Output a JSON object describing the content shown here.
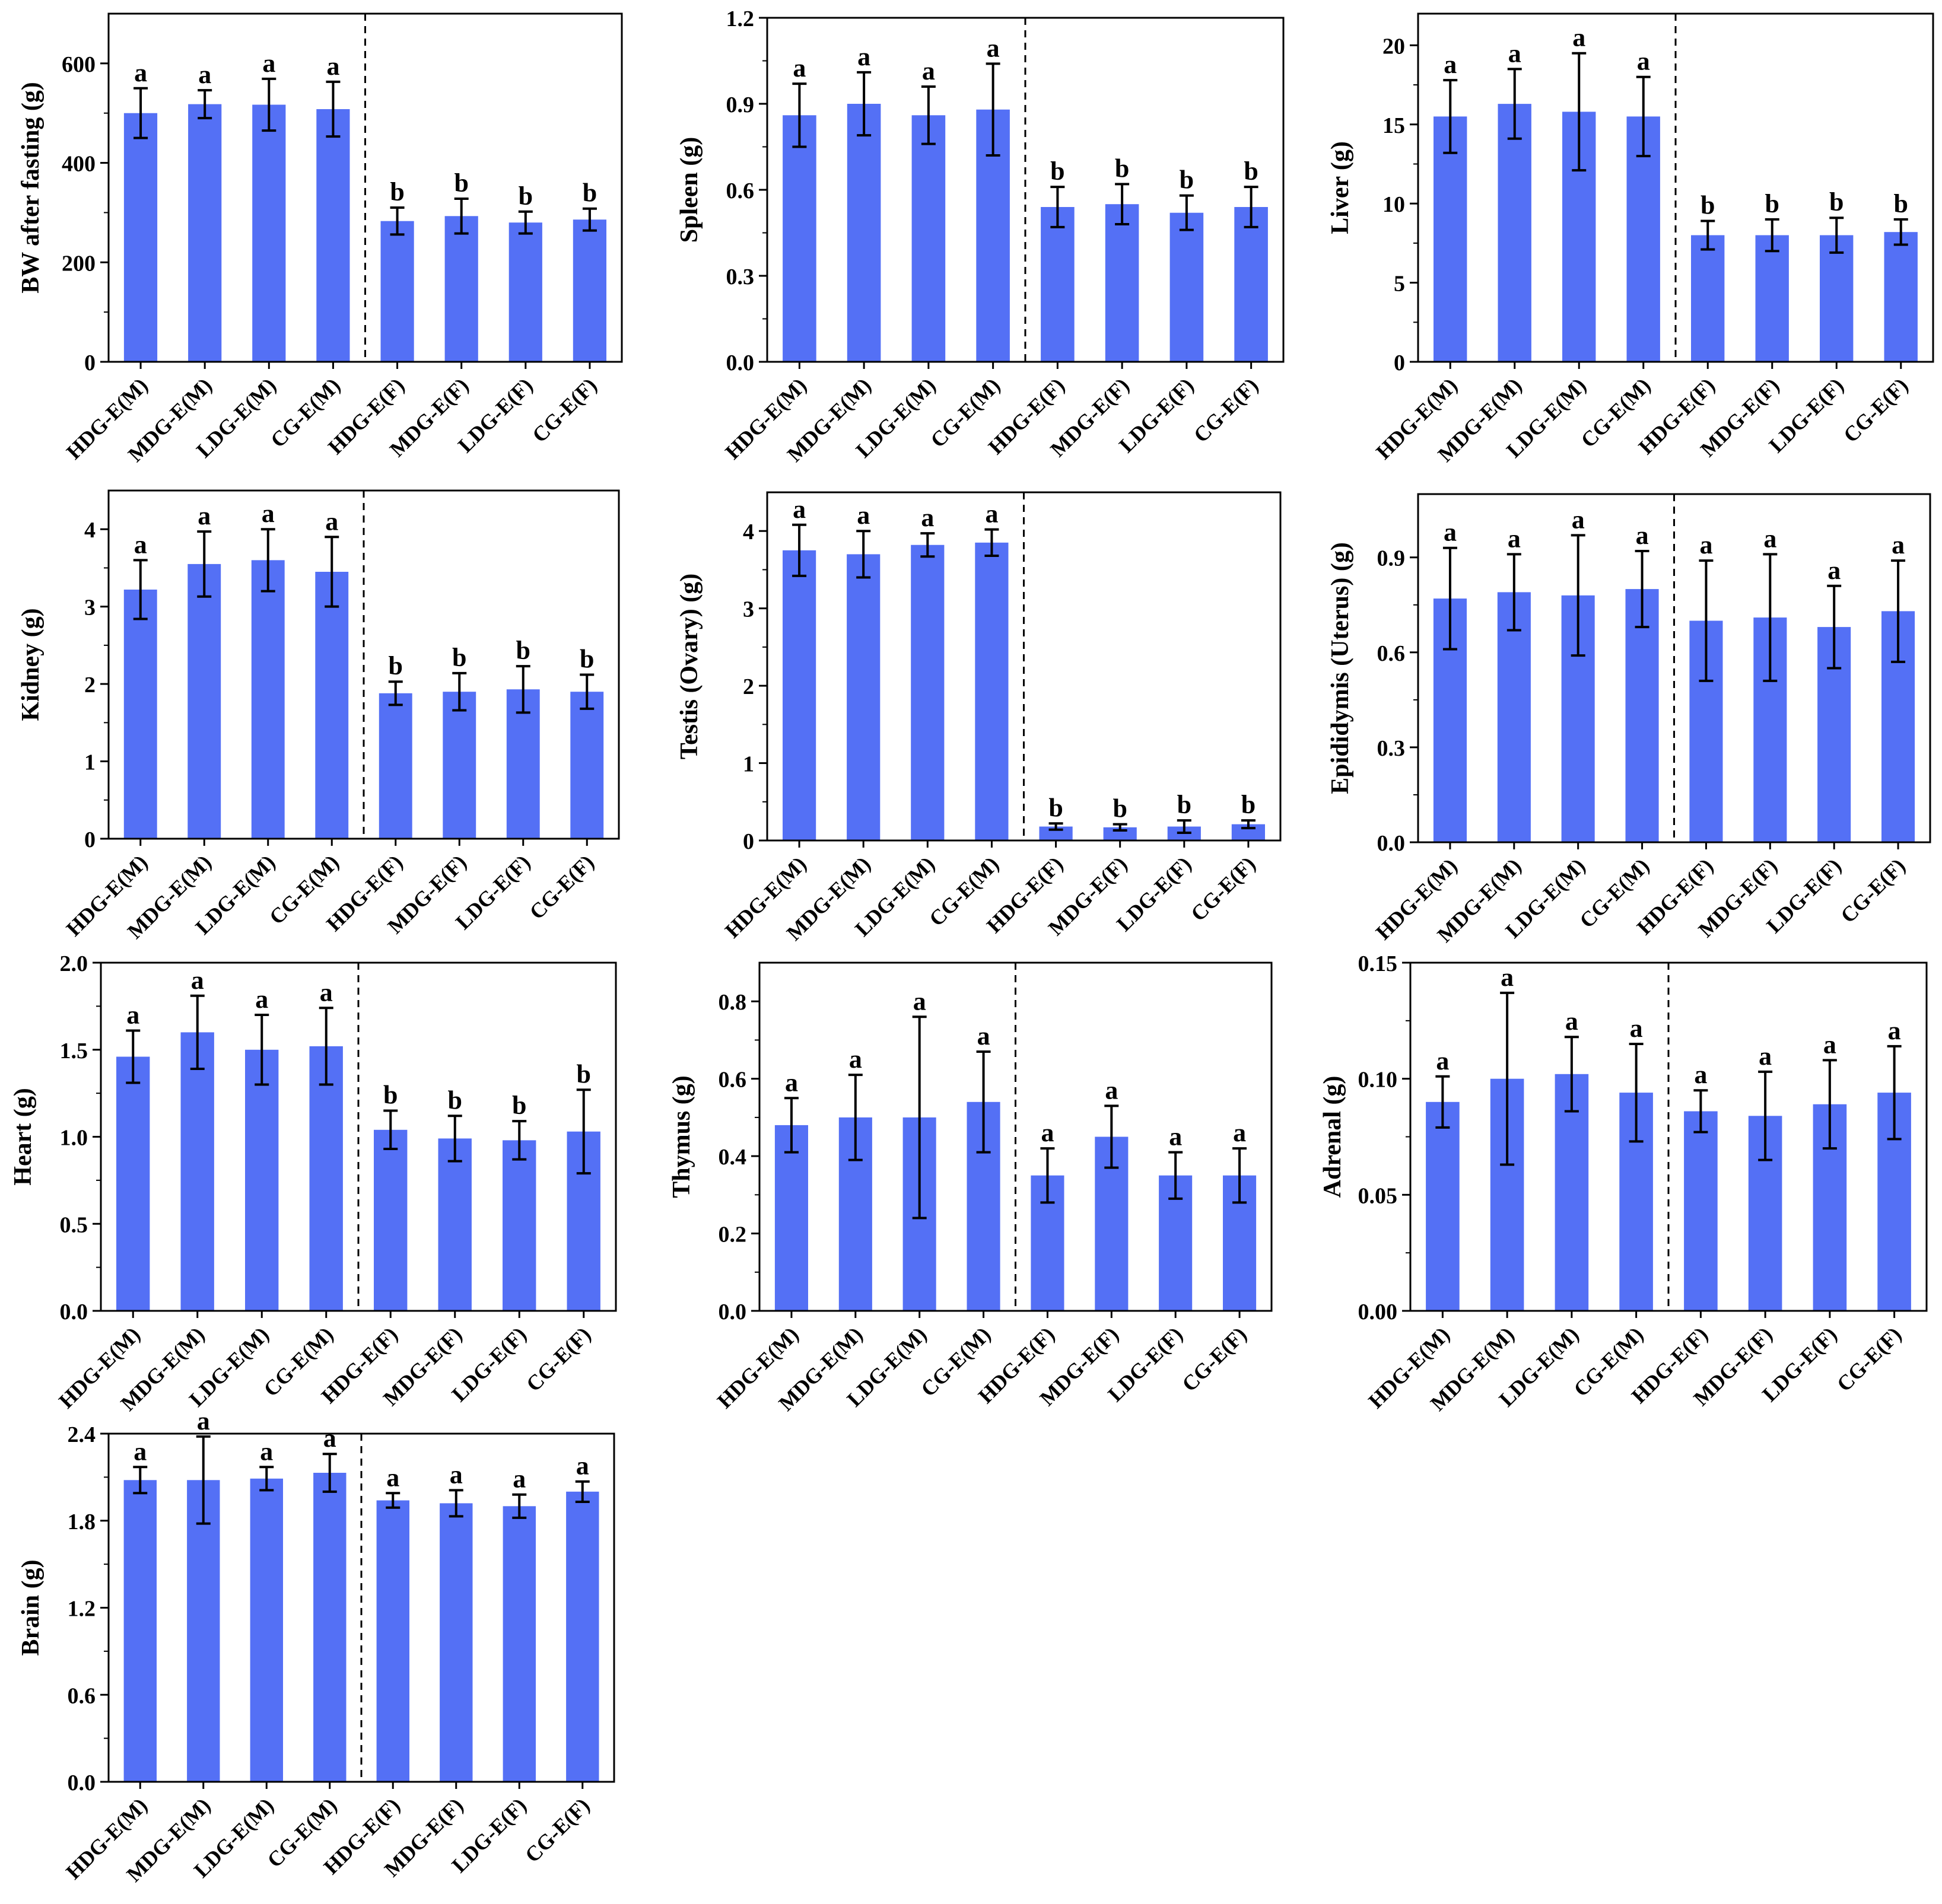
{
  "colors": {
    "bar": "#5470F5",
    "axis": "#000000",
    "errorbar": "#000000"
  },
  "chart_data": [
    {
      "type": "bar",
      "ylabel": "BW after fasting (g)",
      "ylim": [
        0,
        700
      ],
      "yticks": [
        0,
        200,
        400,
        600
      ],
      "ytick_labels": [
        "0",
        "200",
        "400",
        "600"
      ],
      "categories": [
        "HDG-E(M)",
        "MDG-E(M)",
        "LDG-E(M)",
        "CG-E(M)",
        "HDG-E(F)",
        "MDG-E(F)",
        "LDG-E(F)",
        "CG-E(F)"
      ],
      "values": [
        500,
        518,
        517,
        508,
        283,
        293,
        280,
        286
      ],
      "errors": [
        50,
        28,
        52,
        55,
        27,
        35,
        22,
        22
      ],
      "letters": [
        "a",
        "a",
        "a",
        "a",
        "b",
        "b",
        "b",
        "b"
      ],
      "divider_after": 4
    },
    {
      "type": "bar",
      "ylabel": "Spleen (g)",
      "ylim": [
        0,
        1.2
      ],
      "yticks": [
        0,
        0.3,
        0.6,
        0.9,
        1.2
      ],
      "ytick_labels": [
        "0.0",
        "0.3",
        "0.6",
        "0.9",
        "1.2"
      ],
      "categories": [
        "HDG-E(M)",
        "MDG-E(M)",
        "LDG-E(M)",
        "CG-E(M)",
        "HDG-E(F)",
        "MDG-E(F)",
        "LDG-E(F)",
        "CG-E(F)"
      ],
      "values": [
        0.86,
        0.9,
        0.86,
        0.88,
        0.54,
        0.55,
        0.52,
        0.54
      ],
      "errors": [
        0.11,
        0.11,
        0.1,
        0.16,
        0.07,
        0.07,
        0.06,
        0.07
      ],
      "letters": [
        "a",
        "a",
        "a",
        "a",
        "b",
        "b",
        "b",
        "b"
      ],
      "divider_after": 4
    },
    {
      "type": "bar",
      "ylabel": "Liver (g)",
      "ylim": [
        0,
        22
      ],
      "yticks": [
        0,
        5,
        10,
        15,
        20
      ],
      "ytick_labels": [
        "0",
        "5",
        "10",
        "15",
        "20"
      ],
      "categories": [
        "HDG-E(M)",
        "MDG-E(M)",
        "LDG-E(M)",
        "CG-E(M)",
        "HDG-E(F)",
        "MDG-E(F)",
        "LDG-E(F)",
        "CG-E(F)"
      ],
      "values": [
        15.5,
        16.3,
        15.8,
        15.5,
        8.0,
        8.0,
        8.0,
        8.2
      ],
      "errors": [
        2.3,
        2.2,
        3.7,
        2.5,
        0.9,
        1.0,
        1.1,
        0.8
      ],
      "letters": [
        "a",
        "a",
        "a",
        "a",
        "b",
        "b",
        "b",
        "b"
      ],
      "divider_after": 4
    },
    {
      "type": "bar",
      "ylabel": "Kidney (g)",
      "ylim": [
        0,
        4.5
      ],
      "yticks": [
        0,
        1,
        2,
        3,
        4
      ],
      "ytick_labels": [
        "0",
        "1",
        "2",
        "3",
        "4"
      ],
      "categories": [
        "HDG-E(M)",
        "MDG-E(M)",
        "LDG-E(M)",
        "CG-E(M)",
        "HDG-E(F)",
        "MDG-E(F)",
        "LDG-E(F)",
        "CG-E(F)"
      ],
      "values": [
        3.22,
        3.55,
        3.6,
        3.45,
        1.88,
        1.9,
        1.93,
        1.9
      ],
      "errors": [
        0.38,
        0.42,
        0.4,
        0.45,
        0.15,
        0.24,
        0.3,
        0.22
      ],
      "letters": [
        "a",
        "a",
        "a",
        "a",
        "b",
        "b",
        "b",
        "b"
      ],
      "divider_after": 4
    },
    {
      "type": "bar",
      "ylabel": "Testis (Ovary) (g)",
      "ylim": [
        0,
        4.5
      ],
      "yticks": [
        0,
        1,
        2,
        3,
        4
      ],
      "ytick_labels": [
        "0",
        "1",
        "2",
        "3",
        "4"
      ],
      "categories": [
        "HDG-E(M)",
        "MDG-E(M)",
        "LDG-E(M)",
        "CG-E(M)",
        "HDG-E(F)",
        "MDG-E(F)",
        "LDG-E(F)",
        "CG-E(F)"
      ],
      "values": [
        3.75,
        3.7,
        3.82,
        3.85,
        0.18,
        0.17,
        0.18,
        0.21
      ],
      "errors": [
        0.33,
        0.3,
        0.15,
        0.17,
        0.04,
        0.04,
        0.08,
        0.05
      ],
      "letters": [
        "a",
        "a",
        "a",
        "a",
        "b",
        "b",
        "b",
        "b"
      ],
      "divider_after": 4
    },
    {
      "type": "bar",
      "ylabel": "Epididymis (Uterus) (g)",
      "ylim": [
        0,
        1.1
      ],
      "yticks": [
        0,
        0.3,
        0.6,
        0.9
      ],
      "ytick_labels": [
        "0.0",
        "0.3",
        "0.6",
        "0.9"
      ],
      "categories": [
        "HDG-E(M)",
        "MDG-E(M)",
        "LDG-E(M)",
        "CG-E(M)",
        "HDG-E(F)",
        "MDG-E(F)",
        "LDG-E(F)",
        "CG-E(F)"
      ],
      "values": [
        0.77,
        0.79,
        0.78,
        0.8,
        0.7,
        0.71,
        0.68,
        0.73
      ],
      "errors": [
        0.16,
        0.12,
        0.19,
        0.12,
        0.19,
        0.2,
        0.13,
        0.16
      ],
      "letters": [
        "a",
        "a",
        "a",
        "a",
        "a",
        "a",
        "a",
        "a"
      ],
      "divider_after": 4
    },
    {
      "type": "bar",
      "ylabel": "Heart (g)",
      "ylim": [
        0,
        2.0
      ],
      "yticks": [
        0,
        0.5,
        1.0,
        1.5,
        2.0
      ],
      "ytick_labels": [
        "0.0",
        "0.5",
        "1.0",
        "1.5",
        "2.0"
      ],
      "categories": [
        "HDG-E(M)",
        "MDG-E(M)",
        "LDG-E(M)",
        "CG-E(M)",
        "HDG-E(F)",
        "MDG-E(F)",
        "LDG-E(F)",
        "CG-E(F)"
      ],
      "values": [
        1.46,
        1.6,
        1.5,
        1.52,
        1.04,
        0.99,
        0.98,
        1.03
      ],
      "errors": [
        0.15,
        0.21,
        0.2,
        0.22,
        0.11,
        0.13,
        0.11,
        0.24
      ],
      "letters": [
        "a",
        "a",
        "a",
        "a",
        "b",
        "b",
        "b",
        "b"
      ],
      "divider_after": 4
    },
    {
      "type": "bar",
      "ylabel": "Thymus (g)",
      "ylim": [
        0,
        0.9
      ],
      "yticks": [
        0,
        0.2,
        0.4,
        0.6,
        0.8
      ],
      "ytick_labels": [
        "0.0",
        "0.2",
        "0.4",
        "0.6",
        "0.8"
      ],
      "categories": [
        "HDG-E(M)",
        "MDG-E(M)",
        "LDG-E(M)",
        "CG-E(M)",
        "HDG-E(F)",
        "MDG-E(F)",
        "LDG-E(F)",
        "CG-E(F)"
      ],
      "values": [
        0.48,
        0.5,
        0.5,
        0.54,
        0.35,
        0.45,
        0.35,
        0.35
      ],
      "errors": [
        0.07,
        0.11,
        0.26,
        0.13,
        0.07,
        0.08,
        0.06,
        0.07
      ],
      "letters": [
        "a",
        "a",
        "a",
        "a",
        "a",
        "a",
        "a",
        "a"
      ],
      "divider_after": 4
    },
    {
      "type": "bar",
      "ylabel": "Adrenal (g)",
      "ylim": [
        0,
        0.15
      ],
      "yticks": [
        0,
        0.05,
        0.1,
        0.15
      ],
      "ytick_labels": [
        "0.00",
        "0.05",
        "0.10",
        "0.15"
      ],
      "categories": [
        "HDG-E(M)",
        "MDG-E(M)",
        "LDG-E(M)",
        "CG-E(M)",
        "HDG-E(F)",
        "MDG-E(F)",
        "LDG-E(F)",
        "CG-E(F)"
      ],
      "values": [
        0.09,
        0.1,
        0.102,
        0.094,
        0.086,
        0.084,
        0.089,
        0.094
      ],
      "errors": [
        0.011,
        0.037,
        0.016,
        0.021,
        0.009,
        0.019,
        0.019,
        0.02
      ],
      "letters": [
        "a",
        "a",
        "a",
        "a",
        "a",
        "a",
        "a",
        "a"
      ],
      "divider_after": 4
    },
    {
      "type": "bar",
      "ylabel": "Brain (g)",
      "ylim": [
        0,
        2.4
      ],
      "yticks": [
        0,
        0.6,
        1.2,
        1.8,
        2.4
      ],
      "ytick_labels": [
        "0.0",
        "0.6",
        "1.2",
        "1.8",
        "2.4"
      ],
      "categories": [
        "HDG-E(M)",
        "MDG-E(M)",
        "LDG-E(M)",
        "CG-E(M)",
        "HDG-E(F)",
        "MDG-E(F)",
        "LDG-E(F)",
        "CG-E(F)"
      ],
      "values": [
        2.08,
        2.08,
        2.09,
        2.13,
        1.94,
        1.92,
        1.9,
        2.0
      ],
      "errors": [
        0.09,
        0.3,
        0.08,
        0.13,
        0.05,
        0.09,
        0.08,
        0.07
      ],
      "letters": [
        "a",
        "a",
        "a",
        "a",
        "a",
        "a",
        "a",
        "a"
      ],
      "divider_after": 4
    }
  ]
}
